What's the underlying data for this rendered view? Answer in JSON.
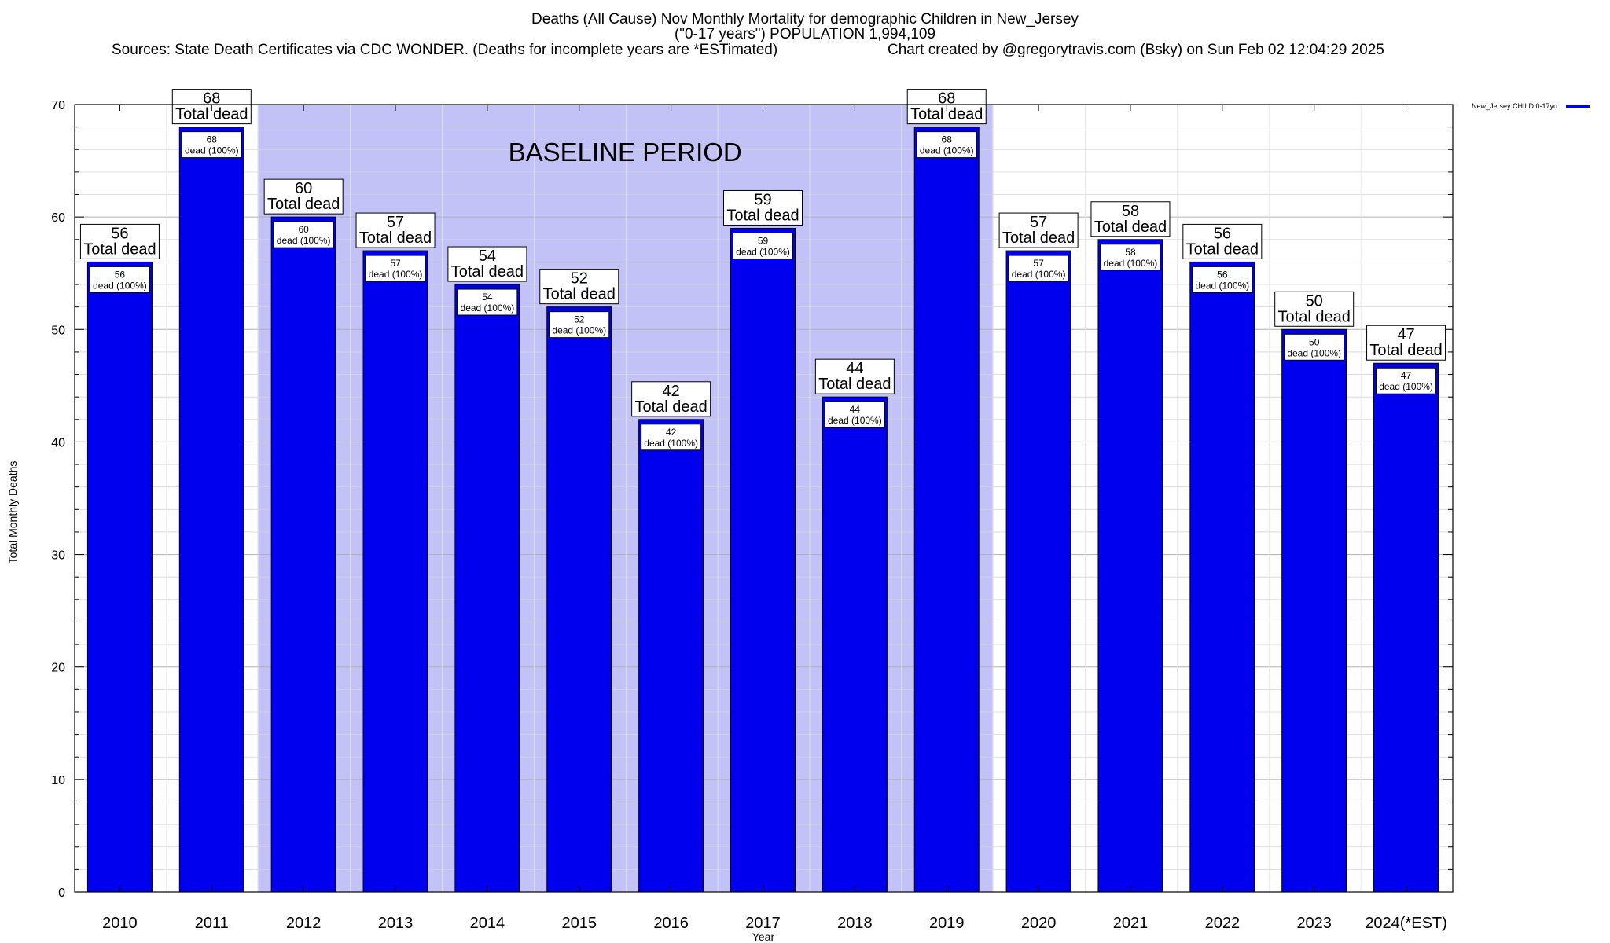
{
  "title": {
    "line1": "Deaths (All Cause) Nov Monthly Mortality for demographic Children in New_Jersey",
    "line2": "(\"0-17 years\") POPULATION 1,994,109",
    "sources": "Sources: State Death Certificates via CDC WONDER. (Deaths for incomplete years are *ESTimated)",
    "created": "Chart created by @gregorytravis.com (Bsky) on Sun Feb 02 12:04:29 2025"
  },
  "legend": {
    "label": "New_Jersey CHILD 0-17yo"
  },
  "colors": {
    "bar": "#0000ee",
    "baseline_band": "#c2c2f7",
    "grid": "#bdbdbd"
  },
  "chart_data": {
    "type": "bar",
    "categories": [
      "2010",
      "2011",
      "2012",
      "2013",
      "2014",
      "2015",
      "2016",
      "2017",
      "2018",
      "2019",
      "2020",
      "2021",
      "2022",
      "2023",
      "2024(*EST)"
    ],
    "series": [
      {
        "name": "New_Jersey CHILD 0-17yo",
        "values": [
          56,
          68,
          60,
          57,
          54,
          52,
          42,
          59,
          44,
          68,
          57,
          58,
          56,
          50,
          47
        ]
      }
    ],
    "xlabel": "Year",
    "ylabel": "Total Monthly Deaths",
    "ylim": [
      0,
      70
    ],
    "yticks": [
      0,
      10,
      20,
      30,
      40,
      50,
      60,
      70
    ],
    "grid": true,
    "legend_position": "top-right",
    "total_label": "Total dead",
    "inner_label_suffix": "dead (100%)",
    "baseline": {
      "label": "BASELINE PERIOD",
      "start": "2012",
      "end": "2019"
    }
  }
}
